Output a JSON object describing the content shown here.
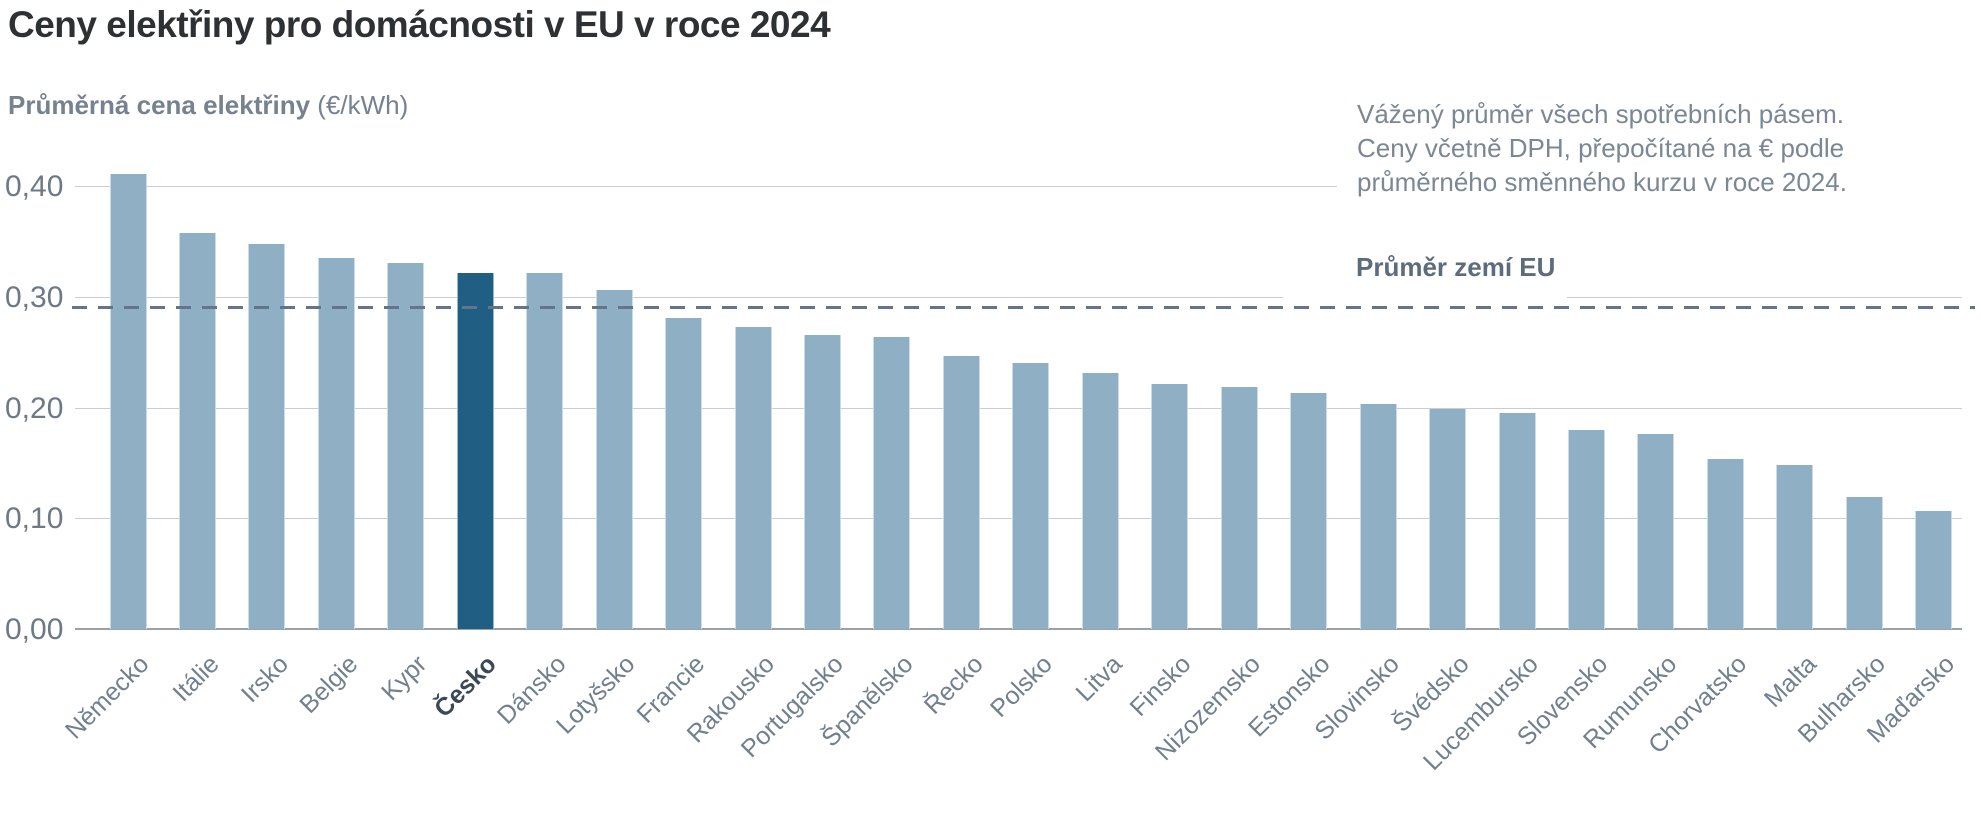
{
  "header": {
    "title": "Ceny elektřiny pro domácnosti v EU v roce 2024"
  },
  "subtitle": {
    "label": "Průměrná cena elektřiny",
    "unit": " (€/kWh)"
  },
  "note": {
    "text": "Vážený průměr všech spotřebních pásem.\nCeny včetně DPH, přepočítané na € podle\nprůměrného směnného kurzu v roce 2024."
  },
  "chart_data": {
    "type": "bar",
    "title": "Ceny elektřiny pro domácnosti v EU v roce 2024",
    "ylabel": "Průměrná cena elektřiny (€/kWh)",
    "xlabel": "",
    "categories": [
      "Německo",
      "Itálie",
      "Irsko",
      "Belgie",
      "Kypr",
      "Česko",
      "Dánsko",
      "Lotyšsko",
      "Francie",
      "Rakousko",
      "Portugalsko",
      "Španělsko",
      "Řecko",
      "Polsko",
      "Litva",
      "Finsko",
      "Nizozemsko",
      "Estonsko",
      "Slovinsko",
      "Švédsko",
      "Lucembursko",
      "Slovensko",
      "Rumunsko",
      "Chorvatsko",
      "Malta",
      "Bulharsko",
      "Maďarsko"
    ],
    "values": [
      0.411,
      0.358,
      0.348,
      0.335,
      0.331,
      0.322,
      0.322,
      0.306,
      0.281,
      0.273,
      0.266,
      0.264,
      0.247,
      0.24,
      0.231,
      0.221,
      0.219,
      0.213,
      0.203,
      0.199,
      0.195,
      0.18,
      0.176,
      0.154,
      0.148,
      0.119,
      0.107
    ],
    "highlight_category": "Česko",
    "avg_line": {
      "label": "Průměr zemí EU",
      "value": 0.291
    },
    "yticks": {
      "labels": [
        "0,00",
        "0,10",
        "0,20",
        "0,30",
        "0,40"
      ],
      "values": [
        0,
        0.1,
        0.2,
        0.3,
        0.4
      ]
    },
    "ylim": [
      0,
      0.42
    ],
    "grid": true,
    "legend": "none",
    "colors": {
      "bar": "#8fafc5",
      "highlight": "#215e84",
      "grid": "#c9cdd4",
      "baseline": "#99a2ac",
      "avg_line": "#64748b"
    }
  }
}
